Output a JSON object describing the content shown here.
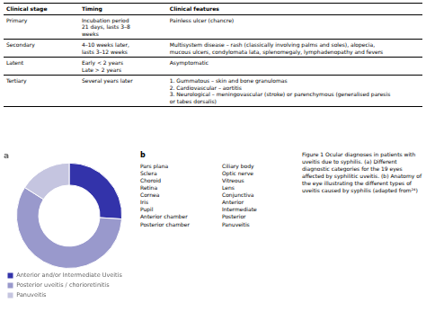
{
  "chart_data": {
    "type": "doughnut",
    "title": "a",
    "subtitle": "Figure 1 Ocular diagnoses in patients with uveitis due to syphilis. (a) Different diagnostic categories for the 19 eyes affected by syphilitic uveitis. (b) Anatomy of the eye illustrating the different types of uveitis caused by syphilis (adapted from²⁴)",
    "categories": [
      "Anterior and/or Intermediate Uveitis",
      "Posterior uveitis / chorioretinitis",
      "Panuveitis"
    ],
    "values": [
      26,
      58,
      16
    ],
    "colors": [
      "#3333aa",
      "#9999cc",
      "#c5c5e0"
    ],
    "legend": "bottom",
    "annotations": [
      "Clinical stage",
      "Timing",
      "Clinical features",
      "Primary",
      "Incubation period\n21 days, lasts 3–8\nweeks",
      "Painless ulcer (chancre)",
      "Secondary",
      "4–10 weeks later,\nlasts 3–12 weeks",
      "Multisystem disease – rash (classically involving palms and soles), alopecia,\nmucous ulcers, condylomata lata, splenomegaly, lymphadenopathy and fevers",
      "Latent",
      "Early < 2 years\nLate > 2 years",
      "Asymptomatic",
      "Tertiary",
      "Several years later",
      "1. Gummatous – skin and bone granulomas\n2. Cardiovascular – aortitis\n3. Neurological – meningovascular (stroke) or parenchymous (generalised paresis\nor tabes dorsalis)",
      "b",
      "Pars plana",
      "Sclera",
      "Choroid",
      "Retina",
      "Cornea",
      "Iris",
      "Pupil",
      "Anterior chamber",
      "Posterior chamber",
      "Ciliary body",
      "Optic nerve",
      "Vitreous",
      "Lens",
      "Conjunctiva",
      "Anterior",
      "Intermediate",
      "Posterior",
      "Panuveitis"
    ]
  }
}
